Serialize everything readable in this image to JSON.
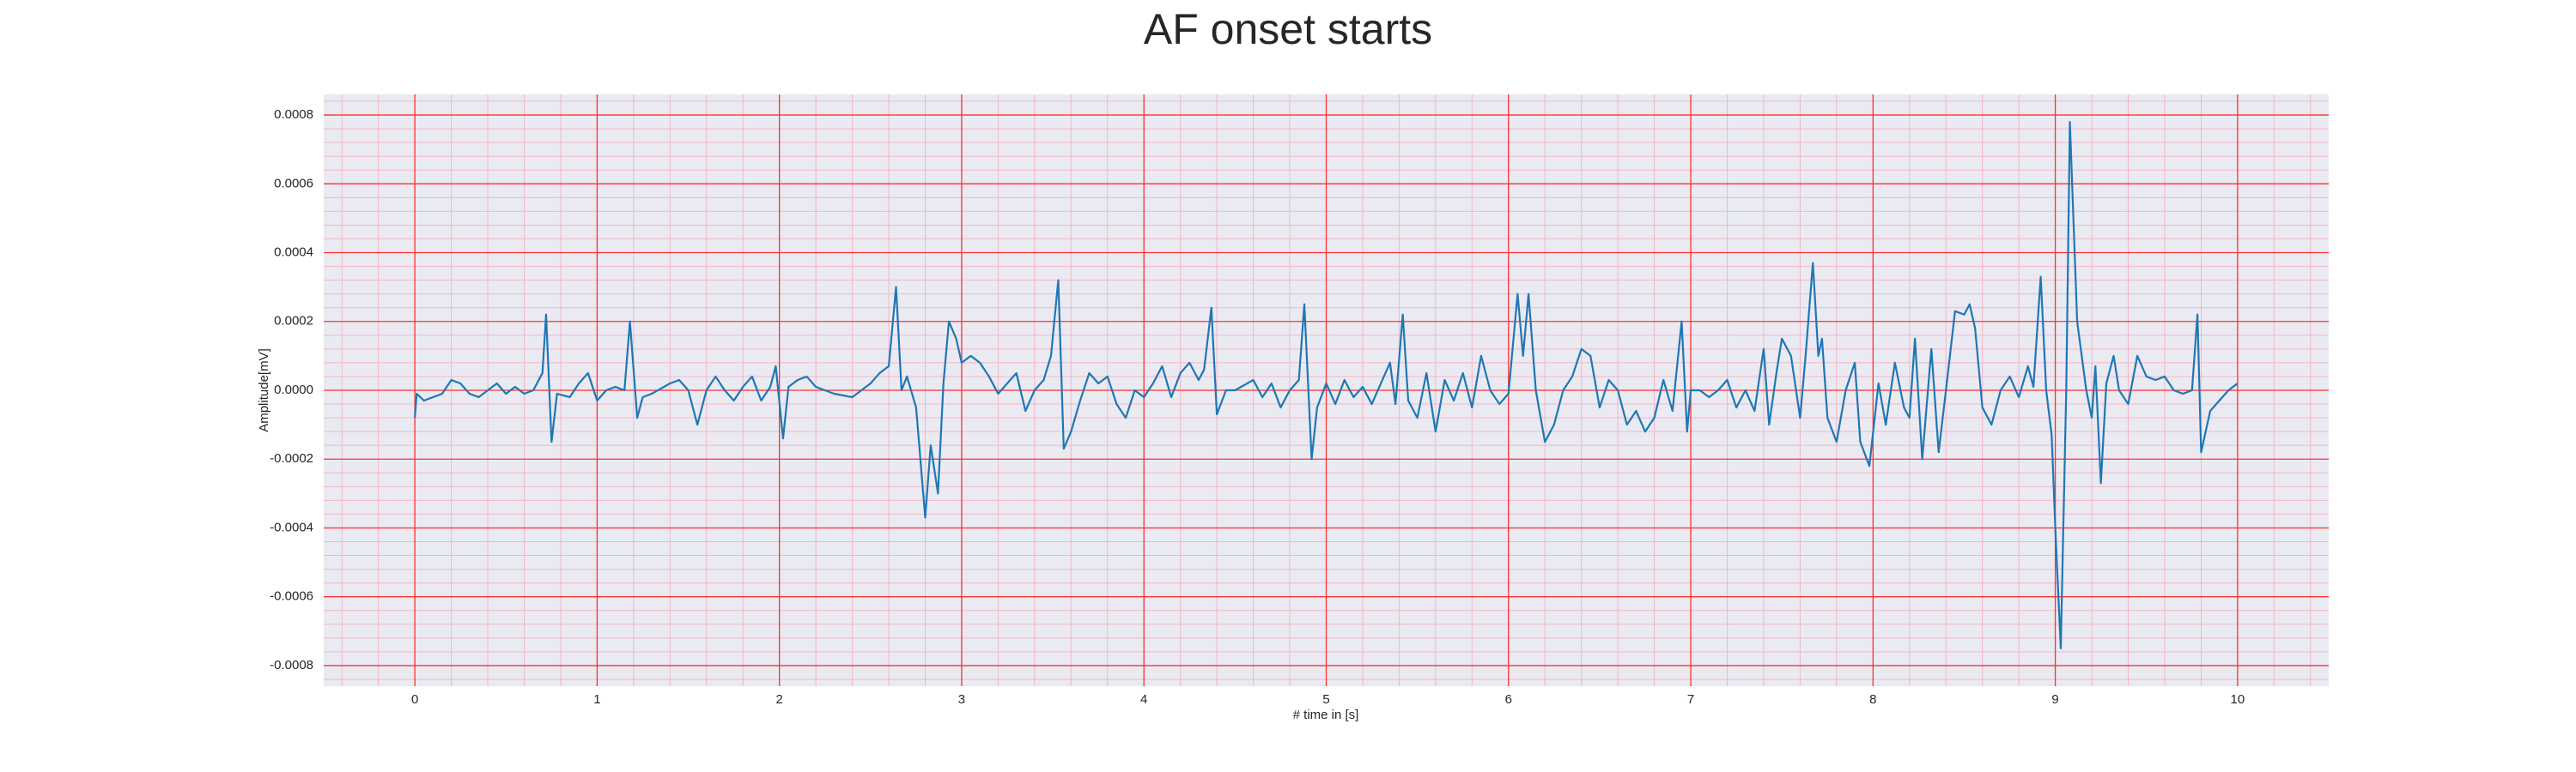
{
  "chart_data": {
    "type": "line",
    "title": "AF onset starts",
    "xlabel": "# time in [s]",
    "ylabel": "Amplitude[mV]",
    "color": "#1f77b4",
    "grid": true,
    "minor_grid": true,
    "xlim": [
      -0.5,
      10.5
    ],
    "ylim": [
      -0.00086,
      0.00086
    ],
    "xticks": [
      0,
      1,
      2,
      3,
      4,
      5,
      6,
      7,
      8,
      9,
      10
    ],
    "yticks": [
      -0.0008,
      -0.0006,
      -0.0004,
      -0.0002,
      {
        "value": 0,
        "label": "0.0000"
      },
      0.0002,
      0.0004,
      0.0006,
      0.0008
    ],
    "x": [
      0,
      0.01,
      0.05,
      0.1,
      0.15,
      0.2,
      0.25,
      0.3,
      0.35,
      0.4,
      0.45,
      0.5,
      0.55,
      0.6,
      0.65,
      0.7,
      0.72,
      0.75,
      0.78,
      0.85,
      0.9,
      0.95,
      1.0,
      1.05,
      1.1,
      1.15,
      1.18,
      1.22,
      1.25,
      1.3,
      1.4,
      1.45,
      1.5,
      1.55,
      1.6,
      1.65,
      1.7,
      1.75,
      1.8,
      1.85,
      1.9,
      1.95,
      1.98,
      2.02,
      2.05,
      2.1,
      2.15,
      2.2,
      2.3,
      2.4,
      2.5,
      2.55,
      2.6,
      2.64,
      2.67,
      2.7,
      2.75,
      2.8,
      2.83,
      2.87,
      2.9,
      2.93,
      2.97,
      3.0,
      3.05,
      3.1,
      3.15,
      3.2,
      3.3,
      3.35,
      3.4,
      3.45,
      3.49,
      3.53,
      3.56,
      3.6,
      3.65,
      3.7,
      3.75,
      3.8,
      3.85,
      3.9,
      3.95,
      4.0,
      4.05,
      4.1,
      4.15,
      4.2,
      4.25,
      4.3,
      4.33,
      4.37,
      4.4,
      4.45,
      4.5,
      4.6,
      4.65,
      4.7,
      4.75,
      4.8,
      4.85,
      4.88,
      4.92,
      4.95,
      5.0,
      5.05,
      5.1,
      5.15,
      5.2,
      5.25,
      5.3,
      5.35,
      5.38,
      5.42,
      5.45,
      5.5,
      5.55,
      5.6,
      5.65,
      5.7,
      5.75,
      5.8,
      5.85,
      5.9,
      5.95,
      6.0,
      6.05,
      6.08,
      6.11,
      6.15,
      6.2,
      6.25,
      6.3,
      6.35,
      6.4,
      6.45,
      6.5,
      6.55,
      6.6,
      6.65,
      6.7,
      6.75,
      6.8,
      6.85,
      6.9,
      6.95,
      6.98,
      7.0,
      7.05,
      7.1,
      7.15,
      7.2,
      7.25,
      7.3,
      7.35,
      7.4,
      7.43,
      7.47,
      7.5,
      7.55,
      7.6,
      7.63,
      7.67,
      7.7,
      7.72,
      7.75,
      7.8,
      7.85,
      7.9,
      7.93,
      7.98,
      8.03,
      8.07,
      8.12,
      8.17,
      8.2,
      8.23,
      8.27,
      8.32,
      8.36,
      8.4,
      8.45,
      8.5,
      8.53,
      8.56,
      8.6,
      8.65,
      8.7,
      8.75,
      8.8,
      8.85,
      8.88,
      8.92,
      8.95,
      8.98,
      9.0,
      9.03,
      9.06,
      9.08,
      9.12,
      9.17,
      9.2,
      9.22,
      9.25,
      9.28,
      9.32,
      9.35,
      9.4,
      9.45,
      9.5,
      9.55,
      9.6,
      9.65,
      9.7,
      9.75,
      9.78,
      9.8,
      9.85,
      9.9,
      9.95,
      10.0
    ],
    "values": [
      -8e-05,
      -1e-05,
      -3e-05,
      -2e-05,
      -1e-05,
      3e-05,
      2e-05,
      -1e-05,
      -2e-05,
      0,
      2e-05,
      -1e-05,
      1e-05,
      -1e-05,
      0,
      5e-05,
      0.00022,
      -0.00015,
      -1e-05,
      -2e-05,
      2e-05,
      5e-05,
      -3e-05,
      0,
      1e-05,
      0,
      0.0002,
      -8e-05,
      -2e-05,
      -1e-05,
      2e-05,
      3e-05,
      0,
      -0.0001,
      0,
      4e-05,
      0,
      -3e-05,
      1e-05,
      4e-05,
      -3e-05,
      1e-05,
      7e-05,
      -0.00014,
      1e-05,
      3e-05,
      4e-05,
      1e-05,
      -1e-05,
      -2e-05,
      2e-05,
      5e-05,
      7e-05,
      0.0003,
      0,
      4e-05,
      -5e-05,
      -0.00037,
      -0.00016,
      -0.0003,
      2e-05,
      0.0002,
      0.00015,
      8e-05,
      0.0001,
      8e-05,
      4e-05,
      -1e-05,
      5e-05,
      -6e-05,
      0,
      3e-05,
      0.0001,
      0.00032,
      -0.00017,
      -0.00012,
      -3e-05,
      5e-05,
      2e-05,
      4e-05,
      -4e-05,
      -8e-05,
      0,
      -2e-05,
      2e-05,
      7e-05,
      -2e-05,
      5e-05,
      8e-05,
      3e-05,
      6e-05,
      0.00024,
      -7e-05,
      0,
      0,
      3e-05,
      -2e-05,
      2e-05,
      -5e-05,
      0,
      3e-05,
      0.00025,
      -0.0002,
      -5e-05,
      2e-05,
      -4e-05,
      3e-05,
      -2e-05,
      1e-05,
      -4e-05,
      2e-05,
      8e-05,
      -4e-05,
      0.00022,
      -3e-05,
      -8e-05,
      5e-05,
      -0.00012,
      3e-05,
      -3e-05,
      5e-05,
      -5e-05,
      0.0001,
      0,
      -4e-05,
      -1e-05,
      0.00028,
      0.0001,
      0.00028,
      0,
      -0.00015,
      -0.0001,
      0,
      4e-05,
      0.00012,
      0.0001,
      -5e-05,
      3e-05,
      0,
      -0.0001,
      -6e-05,
      -0.00012,
      -8e-05,
      3e-05,
      -6e-05,
      0.0002,
      -0.00012,
      0,
      0,
      -2e-05,
      0,
      3e-05,
      -5e-05,
      0,
      -6e-05,
      0.00012,
      -0.0001,
      5e-05,
      0.00015,
      0.0001,
      -8e-05,
      0.0001,
      0.00037,
      0.0001,
      0.00015,
      -8e-05,
      -0.00015,
      0,
      8e-05,
      -0.00015,
      -0.00022,
      2e-05,
      -0.0001,
      8e-05,
      -5e-05,
      -8e-05,
      0.00015,
      -0.0002,
      0.00012,
      -0.00018,
      0,
      0.00023,
      0.00022,
      0.00025,
      0.00018,
      -5e-05,
      -0.0001,
      0,
      4e-05,
      -2e-05,
      7e-05,
      1e-05,
      0.00033,
      0,
      -0.00013,
      -0.0004,
      -0.00075,
      0,
      0.00078,
      0.0002,
      0,
      -8e-05,
      7e-05,
      -0.00027,
      2e-05,
      0.0001,
      0,
      -4e-05,
      0.0001,
      4e-05,
      3e-05,
      4e-05,
      0,
      -1e-05,
      0,
      0.00022,
      -0.00018,
      -6e-05,
      -3e-05,
      0,
      2e-05
    ]
  }
}
